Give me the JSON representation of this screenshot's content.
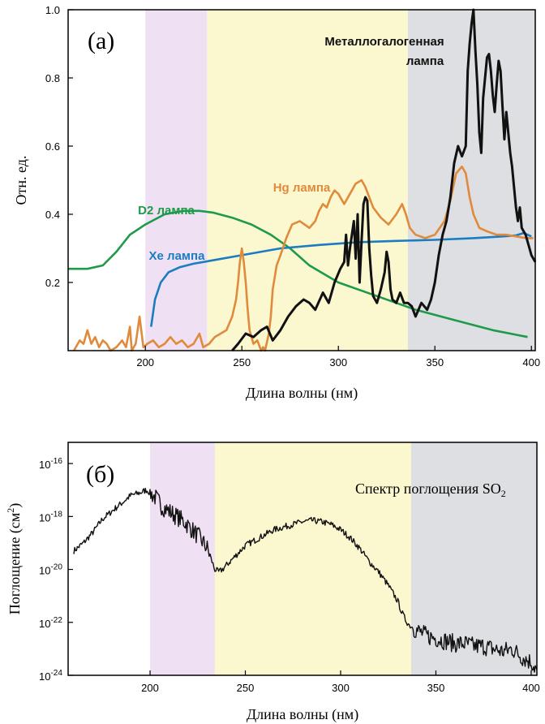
{
  "chart_data": [
    {
      "type": "line",
      "panel_label": "(а)",
      "xlabel": "Длина волны (нм)",
      "ylabel": "Отн. ед.",
      "xlim": [
        160,
        402
      ],
      "ylim": [
        0,
        1.0
      ],
      "x_ticks": [
        "200",
        "250",
        "300",
        "350",
        "400"
      ],
      "y_ticks": [
        "0.2",
        "0.4",
        "0.6",
        "0.8",
        "1.0"
      ],
      "bands": [
        {
          "from": 200,
          "to": 232,
          "color": "#efe0f3"
        },
        {
          "from": 232,
          "to": 336,
          "color": "#fbf7cf"
        },
        {
          "from": 336,
          "to": 402,
          "color": "#dedfe2"
        }
      ],
      "series": [
        {
          "name": "D2 лампа",
          "color": "#1e9a4b",
          "x": [
            160,
            170,
            178,
            185,
            192,
            200,
            210,
            220,
            228,
            235,
            245,
            255,
            265,
            275,
            285,
            300,
            320,
            340,
            360,
            380,
            398
          ],
          "y": [
            0.24,
            0.24,
            0.25,
            0.29,
            0.34,
            0.37,
            0.4,
            0.41,
            0.41,
            0.405,
            0.39,
            0.37,
            0.34,
            0.3,
            0.25,
            0.2,
            0.16,
            0.12,
            0.09,
            0.06,
            0.04
          ]
        },
        {
          "name": "Xe лампа",
          "color": "#1a7dc0",
          "x": [
            203,
            205,
            208,
            212,
            218,
            225,
            235,
            250,
            270,
            290,
            310,
            330,
            350,
            370,
            385,
            392,
            396,
            400
          ],
          "y": [
            0.07,
            0.15,
            0.2,
            0.23,
            0.245,
            0.255,
            0.265,
            0.28,
            0.3,
            0.31,
            0.318,
            0.322,
            0.325,
            0.33,
            0.335,
            0.338,
            0.345,
            0.335
          ]
        },
        {
          "name": "Hg лампа",
          "color": "#e08a3c",
          "x": [
            163,
            166,
            168,
            170,
            172,
            174,
            176,
            178,
            180,
            182,
            185,
            188,
            190,
            192,
            193,
            195,
            197,
            199,
            201,
            204,
            207,
            210,
            213,
            216,
            219,
            222,
            225,
            228,
            230,
            233,
            236,
            239,
            242,
            245,
            247,
            248,
            249,
            250,
            251,
            252,
            253,
            254,
            256,
            258,
            260,
            261,
            262,
            264,
            265,
            266,
            268,
            270,
            273,
            276,
            280,
            285,
            288,
            290,
            292,
            294,
            296,
            298,
            300,
            303,
            306,
            309,
            312,
            314,
            316,
            318,
            322,
            326,
            330,
            333,
            335,
            337,
            340,
            345,
            350,
            355,
            358,
            361,
            364,
            366,
            368,
            370,
            373,
            377,
            382,
            387,
            392,
            397,
            401
          ],
          "y": [
            0.0,
            0.03,
            0.02,
            0.06,
            0.02,
            0.04,
            0.01,
            0.03,
            0.02,
            0.0,
            0.01,
            0.03,
            0.01,
            0.07,
            0.0,
            0.02,
            0.1,
            0.01,
            0.02,
            0.03,
            0.01,
            0.02,
            0.04,
            0.02,
            0.03,
            0.01,
            0.02,
            0.05,
            0.01,
            0.02,
            0.04,
            0.05,
            0.06,
            0.1,
            0.15,
            0.2,
            0.26,
            0.3,
            0.26,
            0.2,
            0.12,
            0.06,
            0.02,
            0.03,
            0.0,
            0.01,
            0.0,
            0.05,
            0.1,
            0.18,
            0.25,
            0.28,
            0.33,
            0.37,
            0.38,
            0.36,
            0.38,
            0.41,
            0.43,
            0.42,
            0.45,
            0.47,
            0.46,
            0.43,
            0.46,
            0.49,
            0.5,
            0.48,
            0.45,
            0.42,
            0.39,
            0.37,
            0.4,
            0.43,
            0.4,
            0.36,
            0.34,
            0.33,
            0.34,
            0.38,
            0.44,
            0.52,
            0.54,
            0.52,
            0.45,
            0.4,
            0.36,
            0.35,
            0.34,
            0.34,
            0.335,
            0.33,
            0.33
          ]
        },
        {
          "name": "Металлогалогенная лампа",
          "color": "#111111",
          "x": [
            245,
            248,
            252,
            256,
            260,
            263,
            266,
            270,
            274,
            278,
            282,
            285,
            288,
            292,
            295,
            298,
            301,
            303,
            304,
            305,
            306,
            308,
            309,
            310,
            311,
            312,
            313,
            314,
            315,
            316,
            317,
            318,
            320,
            322,
            324,
            325,
            326,
            327,
            328,
            330,
            332,
            334,
            336,
            338,
            340,
            343,
            346,
            348,
            350,
            352,
            354,
            356,
            358,
            360,
            362,
            364,
            366,
            367,
            368,
            369,
            370,
            371,
            372,
            373,
            374,
            375,
            376,
            377,
            378,
            379,
            380,
            381,
            382,
            383,
            384,
            385,
            386,
            387,
            388,
            389,
            390,
            391,
            392,
            393,
            394,
            395,
            396,
            397,
            398,
            399,
            400,
            402
          ],
          "y": [
            0.0,
            0.02,
            0.05,
            0.04,
            0.06,
            0.07,
            0.03,
            0.06,
            0.1,
            0.13,
            0.15,
            0.14,
            0.12,
            0.17,
            0.14,
            0.2,
            0.24,
            0.26,
            0.34,
            0.25,
            0.3,
            0.38,
            0.27,
            0.4,
            0.2,
            0.32,
            0.43,
            0.45,
            0.44,
            0.3,
            0.22,
            0.16,
            0.14,
            0.18,
            0.23,
            0.29,
            0.26,
            0.18,
            0.15,
            0.14,
            0.17,
            0.14,
            0.14,
            0.13,
            0.1,
            0.14,
            0.12,
            0.15,
            0.2,
            0.28,
            0.34,
            0.38,
            0.45,
            0.55,
            0.6,
            0.57,
            0.6,
            0.82,
            0.9,
            0.96,
            1.0,
            0.88,
            0.78,
            0.64,
            0.58,
            0.74,
            0.8,
            0.86,
            0.87,
            0.82,
            0.75,
            0.7,
            0.78,
            0.85,
            0.82,
            0.72,
            0.62,
            0.7,
            0.64,
            0.58,
            0.54,
            0.48,
            0.42,
            0.38,
            0.42,
            0.36,
            0.35,
            0.34,
            0.32,
            0.3,
            0.28,
            0.26
          ]
        }
      ]
    },
    {
      "type": "line",
      "panel_label": "(б)",
      "annotation": "Спектр поглощения SO",
      "annotation_sub": "2",
      "xlabel": "Длина волны (нм)",
      "ylabel": "Поглощение (см",
      "ylabel_sup": "2",
      "ylabel_tail": ")",
      "yscale": "log",
      "xlim": [
        157,
        403
      ],
      "ylim_log10": [
        -24,
        -15.2
      ],
      "x_ticks": [
        "200",
        "250",
        "300",
        "350",
        "400"
      ],
      "y_ticks": [
        {
          "base": "10",
          "exp": "-24"
        },
        {
          "base": "10",
          "exp": "-22"
        },
        {
          "base": "10",
          "exp": "-20"
        },
        {
          "base": "10",
          "exp": "-18"
        },
        {
          "base": "10",
          "exp": "-16"
        }
      ],
      "bands": [
        {
          "from": 200,
          "to": 234,
          "color": "#efe0f3"
        },
        {
          "from": 234,
          "to": 337,
          "color": "#fbf7cf"
        },
        {
          "from": 337,
          "to": 403,
          "color": "#dedfe2"
        }
      ],
      "series": [
        {
          "name": "",
          "color": "#111111",
          "x": [
            160,
            165,
            170,
            175,
            180,
            185,
            190,
            195,
            198,
            200,
            203,
            206,
            210,
            214,
            218,
            222,
            226,
            230,
            232,
            234,
            236,
            238,
            242,
            246,
            250,
            255,
            260,
            265,
            270,
            275,
            280,
            285,
            290,
            295,
            300,
            305,
            310,
            315,
            320,
            325,
            330,
            332,
            334,
            336,
            338,
            340,
            345,
            350,
            355,
            360,
            365,
            370,
            375,
            380,
            385,
            390,
            395,
            400,
            403
          ],
          "y": [
            -19.3,
            -19.0,
            -18.6,
            -18.1,
            -17.8,
            -17.5,
            -17.2,
            -17.1,
            -17.0,
            -17.1,
            -17.3,
            -17.6,
            -17.8,
            -18.0,
            -18.2,
            -18.5,
            -18.8,
            -19.2,
            -19.6,
            -20.0,
            -20.1,
            -20.0,
            -19.7,
            -19.4,
            -19.1,
            -18.9,
            -18.7,
            -18.5,
            -18.4,
            -18.3,
            -18.2,
            -18.15,
            -18.2,
            -18.3,
            -18.5,
            -18.8,
            -19.2,
            -19.7,
            -20.1,
            -20.6,
            -21.2,
            -21.6,
            -21.9,
            -22.1,
            -22.2,
            -22.3,
            -22.5,
            -22.6,
            -22.7,
            -22.8,
            -22.8,
            -22.9,
            -22.9,
            -23.0,
            -23.1,
            -23.0,
            -23.3,
            -23.5,
            -23.8
          ]
        }
      ]
    }
  ]
}
